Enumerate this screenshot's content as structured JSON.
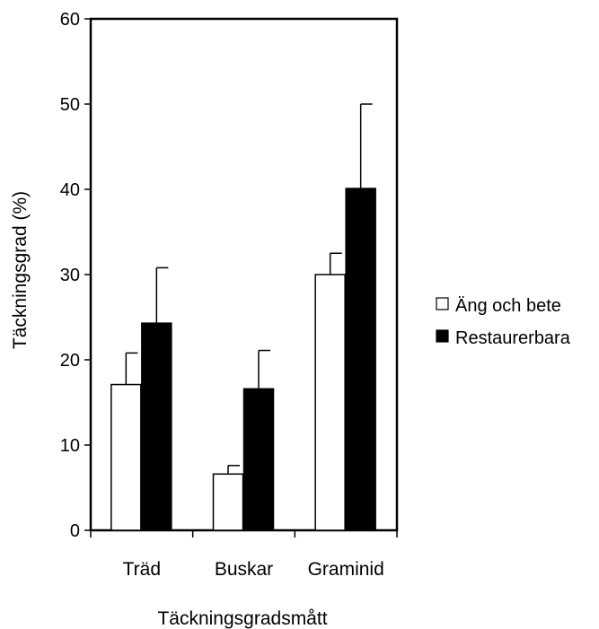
{
  "chart_data": {
    "type": "bar",
    "xlabel": "Täckningsgradsmått",
    "ylabel": "Täckningsgrad (%)",
    "ylim": [
      0,
      60
    ],
    "yticks": [
      0,
      10,
      20,
      30,
      40,
      50,
      60
    ],
    "categories": [
      "Träd",
      "Buskar",
      "Graminid"
    ],
    "series": [
      {
        "name": "Äng och bete",
        "values": [
          17.1,
          6.6,
          30.0
        ],
        "error": [
          3.7,
          1.0,
          2.5
        ],
        "color": "#ffffff"
      },
      {
        "name": "Restaurerbara",
        "values": [
          24.3,
          16.6,
          40.1
        ],
        "error": [
          6.5,
          4.5,
          9.9
        ],
        "color": "#000000"
      }
    ],
    "legend_position": "right",
    "grid": false
  }
}
